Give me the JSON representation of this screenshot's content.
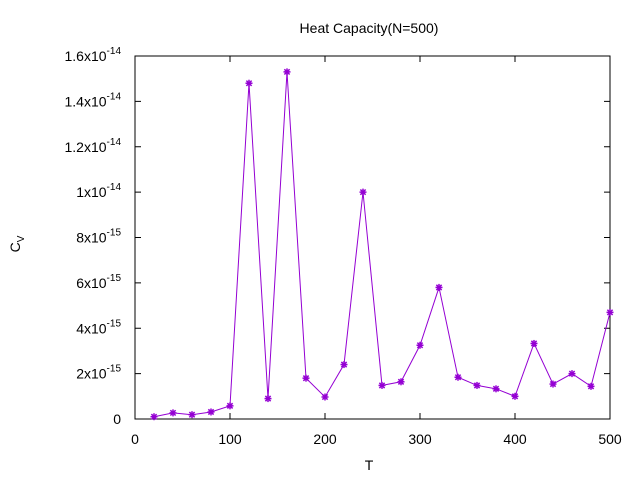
{
  "chart_data": {
    "type": "line",
    "title": "Heat Capacity(N=500)",
    "xlabel": "T",
    "ylabel": "C",
    "ylabel_sub": "V",
    "xlim": [
      0,
      500
    ],
    "ylim": [
      0,
      1.6e-14
    ],
    "grid": false,
    "legend": "none",
    "x_ticks": [
      0,
      100,
      200,
      300,
      400,
      500
    ],
    "x_tick_labels": [
      "0",
      "100",
      "200",
      "300",
      "400",
      "500"
    ],
    "y_ticks": [
      0,
      2e-15,
      4e-15,
      6e-15,
      8e-15,
      1e-14,
      1.2e-14,
      1.4e-14,
      1.6e-14
    ],
    "y_tick_labels": [
      {
        "base": "0",
        "exp": ""
      },
      {
        "base": "2x10",
        "exp": "-15"
      },
      {
        "base": "4x10",
        "exp": "-15"
      },
      {
        "base": "6x10",
        "exp": "-15"
      },
      {
        "base": "8x10",
        "exp": "-15"
      },
      {
        "base": "1x10",
        "exp": "-14"
      },
      {
        "base": "1.2x10",
        "exp": "-14"
      },
      {
        "base": "1.4x10",
        "exp": "-14"
      },
      {
        "base": "1.6x10",
        "exp": "-14"
      }
    ],
    "series": [
      {
        "color": "#9400d3",
        "marker": "star",
        "x": [
          20,
          40,
          60,
          80,
          100,
          120,
          140,
          160,
          180,
          200,
          220,
          240,
          260,
          280,
          300,
          320,
          340,
          360,
          380,
          400,
          420,
          440,
          460,
          480,
          500
        ],
        "values": [
          1e-16,
          2.7e-16,
          1.9e-16,
          3.1e-16,
          5.8e-16,
          1.48e-14,
          9e-16,
          1.53e-14,
          1.8e-15,
          9.7e-16,
          2.4e-15,
          1e-14,
          1.48e-15,
          1.64e-15,
          3.25e-15,
          5.8e-15,
          1.84e-15,
          1.48e-15,
          1.33e-15,
          1e-15,
          3.33e-15,
          1.54e-15,
          2e-15,
          1.44e-15,
          4.7e-15
        ]
      }
    ]
  }
}
